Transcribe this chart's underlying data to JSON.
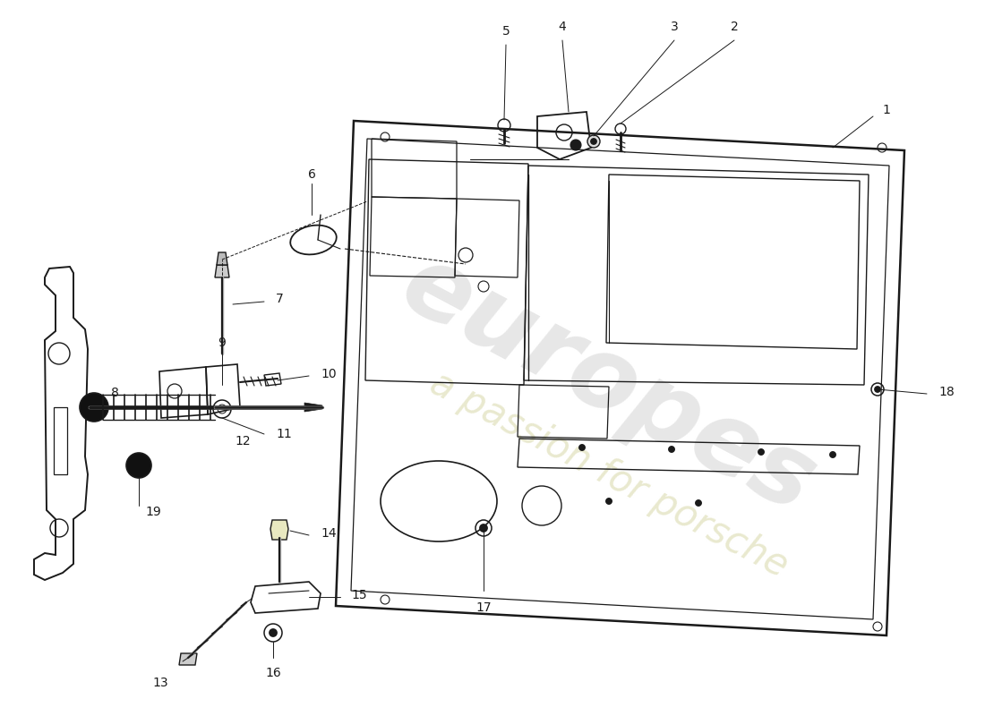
{
  "bg_color": "#ffffff",
  "line_color": "#1a1a1a",
  "watermark1": "europes",
  "watermark2": "a passion for porsche",
  "figsize": [
    11.0,
    8.0
  ],
  "dpi": 100
}
